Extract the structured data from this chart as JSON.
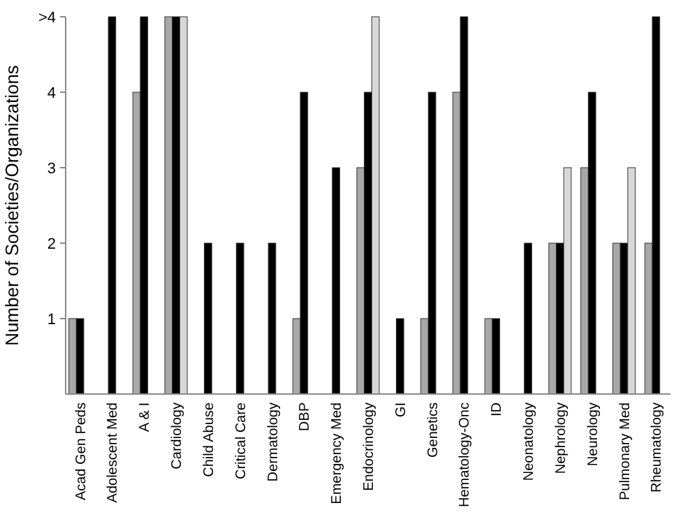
{
  "chart_data": {
    "type": "bar",
    "ylabel": "Number of Societies/Organizations",
    "categories": [
      "Acad Gen Peds",
      "Adolescent Med",
      "A & I",
      "Cardiology",
      "Child Abuse",
      "Critical Care",
      "Dermatology",
      "DBP",
      "Emergency Med",
      "Endocrinology",
      "GI",
      "Genetics",
      "Hematology-Onc",
      "ID",
      "Neonatology",
      "Nephrology",
      "Neurology",
      "Pulmonary Med",
      "Rheumatology"
    ],
    "series": [
      {
        "color": "#a8a8a8",
        "values": [
          1,
          null,
          4,
          5,
          null,
          null,
          null,
          1,
          null,
          3,
          null,
          1,
          4,
          1,
          null,
          2,
          3,
          2,
          2
        ]
      },
      {
        "color": "#000000",
        "values": [
          1,
          5,
          5,
          5,
          2,
          2,
          2,
          4,
          3,
          4,
          1,
          4,
          5,
          1,
          2,
          2,
          4,
          2,
          5
        ]
      },
      {
        "color": "#d8d8d8",
        "values": [
          null,
          null,
          null,
          5,
          null,
          null,
          null,
          null,
          null,
          5,
          null,
          null,
          null,
          null,
          null,
          3,
          null,
          3,
          null
        ]
      }
    ],
    "ylim": [
      0,
      5
    ],
    "yticks": [
      1,
      2,
      3,
      4,
      {
        "value": 5,
        "label": ">4"
      }
    ],
    "grid": false
  }
}
